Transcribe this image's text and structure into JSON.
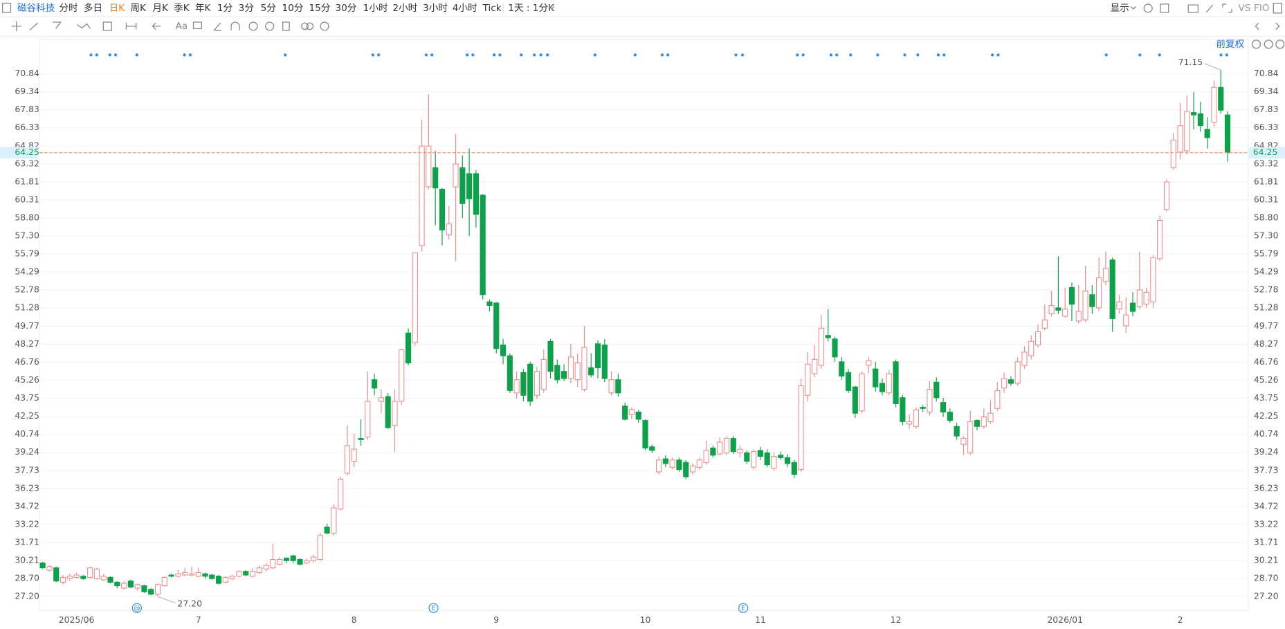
{
  "toolbar": {
    "stock": "磁谷科技",
    "periods": [
      "分时",
      "多日",
      "日K",
      "周K",
      "月K",
      "季K",
      "年K",
      "1分",
      "3分",
      "5分",
      "10分",
      "15分",
      "30分",
      "1小时",
      "2小时",
      "3小时",
      "4小时",
      "Tick",
      "1天 : 1分K"
    ],
    "active_period_index": 2,
    "display": "显示",
    "vs": "VS",
    "fio": "FIO",
    "text_tool": "Aa",
    "adjust": "前复权"
  },
  "chart_data": {
    "type": "candlestick",
    "up_color": "#f08a8a",
    "down_color": "#0ea14b",
    "price_line_color": "#f5a15a",
    "grid": true,
    "ylim": [
      26.04,
      72.89
    ],
    "yticks": [
      {
        "value": 27.2,
        "label": "27.20"
      },
      {
        "value": 28.7,
        "label": "28.70"
      },
      30.21,
      31.71,
      33.22,
      34.72,
      36.23,
      37.73,
      39.24,
      40.74,
      42.25,
      43.75,
      45.26,
      46.76,
      48.27,
      49.77,
      51.28,
      52.78,
      54.29,
      55.79,
      {
        "value": 57.3,
        "label": "57.30"
      },
      {
        "value": 58.8,
        "label": "58.80"
      },
      60.31,
      61.81,
      63.32,
      64.82,
      66.33,
      67.83,
      69.34,
      70.84
    ],
    "last_price": 64.25,
    "annotations": [
      "71.15",
      "27.20"
    ],
    "bottom_markers": [
      "@",
      "E",
      "E"
    ],
    "categories": [
      null,
      null,
      null,
      null,
      null,
      "2025/06",
      null,
      null,
      null,
      null,
      null,
      null,
      null,
      null,
      null,
      null,
      null,
      null,
      null,
      null,
      null,
      null,
      null,
      "7",
      null,
      null,
      null,
      null,
      null,
      null,
      null,
      null,
      null,
      null,
      null,
      null,
      null,
      null,
      null,
      null,
      null,
      null,
      null,
      null,
      null,
      null,
      "8",
      null,
      null,
      null,
      null,
      null,
      null,
      null,
      null,
      null,
      null,
      null,
      null,
      null,
      null,
      null,
      null,
      null,
      null,
      null,
      null,
      "9",
      null,
      null,
      null,
      null,
      null,
      null,
      null,
      null,
      null,
      null,
      null,
      null,
      null,
      null,
      null,
      null,
      null,
      null,
      null,
      null,
      null,
      "10",
      null,
      null,
      null,
      null,
      null,
      null,
      null,
      null,
      null,
      null,
      null,
      null,
      null,
      null,
      null,
      null,
      "11",
      null,
      null,
      null,
      null,
      null,
      null,
      null,
      null,
      null,
      null,
      null,
      null,
      null,
      null,
      null,
      null,
      null,
      null,
      null,
      "12",
      null,
      null,
      null,
      null,
      null,
      null,
      null,
      null,
      null,
      null,
      null,
      null,
      null,
      null,
      null,
      null,
      null,
      null,
      null,
      null,
      null,
      null,
      null,
      null,
      "2026/01",
      null,
      null,
      null,
      null,
      null,
      null,
      null,
      null,
      null,
      null,
      null,
      null,
      null,
      null,
      null,
      null,
      "2",
      null,
      null,
      null,
      null,
      null,
      null,
      null
    ],
    "ohlc": [
      [
        30.0,
        30.1,
        29.5,
        29.6
      ],
      [
        29.4,
        29.8,
        29.3,
        29.7
      ],
      [
        29.6,
        29.7,
        28.4,
        28.5
      ],
      [
        28.4,
        29.0,
        28.2,
        28.8
      ],
      [
        28.7,
        29.1,
        28.5,
        28.9
      ],
      [
        28.8,
        29.2,
        28.7,
        29.0
      ],
      [
        28.9,
        29.0,
        28.6,
        28.7
      ],
      [
        28.8,
        29.7,
        28.7,
        29.6
      ],
      [
        28.7,
        29.6,
        28.6,
        29.5
      ],
      [
        28.6,
        29.1,
        28.5,
        28.9
      ],
      [
        28.8,
        28.9,
        28.3,
        28.4
      ],
      [
        28.4,
        28.5,
        27.9,
        28.1
      ],
      [
        27.9,
        28.5,
        27.8,
        28.3
      ],
      [
        28.5,
        28.6,
        27.9,
        28.0
      ],
      [
        27.9,
        28.3,
        27.7,
        28.2
      ],
      [
        28.1,
        28.2,
        27.5,
        27.6
      ],
      [
        27.8,
        27.9,
        27.3,
        27.4
      ],
      [
        27.4,
        28.3,
        27.2,
        28.2
      ],
      [
        28.1,
        28.9,
        28.0,
        28.8
      ],
      [
        29.0,
        29.1,
        28.8,
        28.9
      ],
      [
        28.9,
        29.4,
        28.8,
        29.1
      ],
      [
        29.0,
        29.6,
        28.9,
        29.2
      ],
      [
        29.0,
        29.7,
        28.9,
        29.1
      ],
      [
        28.9,
        29.6,
        28.8,
        29.2
      ],
      [
        29.1,
        29.2,
        28.7,
        28.9
      ],
      [
        29.0,
        29.1,
        28.6,
        28.7
      ],
      [
        28.9,
        29.0,
        28.2,
        28.3
      ],
      [
        28.4,
        28.9,
        28.3,
        28.8
      ],
      [
        28.7,
        29.0,
        28.6,
        28.9
      ],
      [
        28.9,
        29.4,
        28.8,
        29.3
      ],
      [
        29.3,
        29.4,
        28.9,
        29.0
      ],
      [
        28.9,
        29.6,
        28.8,
        29.3
      ],
      [
        29.2,
        29.8,
        29.1,
        29.6
      ],
      [
        29.5,
        30.0,
        29.3,
        29.8
      ],
      [
        29.6,
        31.6,
        29.5,
        30.3
      ],
      [
        29.9,
        30.5,
        29.8,
        30.3
      ],
      [
        30.4,
        30.5,
        30.0,
        30.2
      ],
      [
        30.6,
        30.7,
        30.0,
        30.2
      ],
      [
        30.3,
        30.4,
        29.8,
        29.9
      ],
      [
        30.0,
        30.4,
        29.9,
        30.2
      ],
      [
        30.2,
        30.7,
        30.0,
        30.5
      ],
      [
        30.3,
        32.5,
        30.2,
        32.3
      ],
      [
        33.0,
        33.3,
        32.4,
        32.5
      ],
      [
        32.5,
        34.9,
        32.3,
        34.6
      ],
      [
        34.5,
        37.2,
        34.4,
        37.0
      ],
      [
        37.5,
        41.5,
        37.3,
        39.8
      ],
      [
        38.5,
        40.8,
        38.0,
        39.5
      ],
      [
        40.4,
        42.0,
        39.8,
        40.3
      ],
      [
        40.5,
        46.0,
        40.3,
        43.5
      ],
      [
        45.3,
        45.8,
        44.0,
        44.6
      ],
      [
        43.5,
        44.5,
        42.5,
        43.8
      ],
      [
        43.9,
        44.2,
        41.2,
        41.3
      ],
      [
        41.5,
        44.5,
        39.3,
        43.5
      ],
      [
        43.5,
        47.9,
        43.2,
        47.8
      ],
      [
        49.2,
        49.6,
        46.5,
        46.7
      ],
      [
        48.4,
        55.9,
        48.1,
        55.9
      ],
      [
        56.5,
        67.0,
        56.0,
        64.8
      ],
      [
        61.4,
        69.1,
        61.2,
        64.8
      ],
      [
        63.0,
        64.4,
        58.2,
        61.3
      ],
      [
        61.2,
        61.3,
        56.5,
        57.8
      ],
      [
        57.4,
        59.8,
        57.0,
        58.3
      ],
      [
        61.4,
        65.8,
        55.2,
        63.3
      ],
      [
        63.0,
        64.0,
        58.8,
        60.0
      ],
      [
        62.5,
        64.6,
        57.3,
        60.4
      ],
      [
        62.5,
        62.8,
        58.0,
        59.1
      ],
      [
        60.7,
        60.8,
        52.0,
        52.4
      ],
      [
        51.8,
        52.0,
        51.0,
        51.5
      ],
      [
        51.7,
        51.8,
        47.5,
        47.9
      ],
      [
        48.2,
        48.7,
        46.6,
        47.3
      ],
      [
        47.3,
        47.5,
        44.2,
        44.4
      ],
      [
        44.2,
        46.0,
        43.7,
        45.3
      ],
      [
        45.9,
        46.2,
        43.5,
        44.0
      ],
      [
        46.6,
        46.8,
        43.1,
        43.5
      ],
      [
        44.0,
        46.4,
        43.7,
        46.0
      ],
      [
        44.5,
        47.8,
        44.2,
        47.0
      ],
      [
        48.5,
        48.7,
        45.4,
        46.0
      ],
      [
        46.5,
        47.0,
        45.0,
        45.3
      ],
      [
        46.0,
        46.6,
        45.2,
        45.4
      ],
      [
        45.4,
        48.3,
        45.0,
        47.2
      ],
      [
        45.3,
        47.5,
        44.7,
        46.7
      ],
      [
        44.5,
        49.8,
        44.3,
        48.0
      ],
      [
        46.3,
        47.5,
        45.5,
        45.7
      ],
      [
        48.3,
        48.6,
        45.4,
        46.3
      ],
      [
        48.2,
        48.7,
        45.1,
        45.4
      ],
      [
        44.2,
        46.0,
        44.0,
        45.3
      ],
      [
        45.3,
        45.8,
        43.9,
        44.2
      ],
      [
        43.1,
        43.4,
        41.9,
        42.0
      ],
      [
        42.4,
        43.0,
        42.0,
        42.8
      ],
      [
        42.6,
        42.8,
        41.7,
        42.0
      ],
      [
        41.9,
        42.0,
        39.4,
        39.6
      ],
      [
        39.7,
        39.9,
        39.2,
        39.4
      ],
      [
        37.6,
        38.9,
        37.4,
        38.6
      ],
      [
        38.7,
        39.0,
        38.0,
        38.3
      ],
      [
        38.0,
        38.8,
        37.8,
        38.6
      ],
      [
        38.6,
        38.8,
        37.6,
        37.8
      ],
      [
        38.4,
        38.6,
        37.0,
        37.2
      ],
      [
        37.6,
        38.3,
        37.4,
        38.1
      ],
      [
        38.0,
        38.8,
        37.8,
        38.6
      ],
      [
        38.4,
        40.2,
        38.2,
        39.4
      ],
      [
        39.6,
        39.8,
        38.8,
        39.0
      ],
      [
        39.1,
        40.5,
        39.0,
        40.1
      ],
      [
        39.2,
        40.6,
        39.0,
        40.4
      ],
      [
        40.4,
        40.6,
        39.1,
        39.3
      ],
      [
        39.2,
        39.8,
        38.8,
        39.5
      ],
      [
        39.2,
        39.4,
        38.3,
        38.5
      ],
      [
        38.0,
        39.5,
        37.8,
        39.3
      ],
      [
        39.4,
        39.7,
        38.6,
        38.9
      ],
      [
        39.2,
        39.5,
        38.0,
        38.2
      ],
      [
        37.9,
        39.2,
        37.7,
        38.9
      ],
      [
        39.0,
        39.3,
        38.6,
        38.8
      ],
      [
        38.8,
        39.1,
        38.0,
        38.3
      ],
      [
        38.4,
        38.6,
        37.1,
        37.4
      ],
      [
        37.8,
        45.4,
        37.6,
        44.8
      ],
      [
        44.0,
        47.6,
        43.5,
        46.6
      ],
      [
        45.8,
        48.2,
        45.5,
        47.0
      ],
      [
        46.5,
        50.7,
        46.2,
        49.6
      ],
      [
        49.0,
        51.2,
        48.5,
        48.8
      ],
      [
        48.7,
        48.9,
        46.8,
        47.2
      ],
      [
        46.8,
        47.2,
        45.3,
        45.6
      ],
      [
        45.9,
        46.2,
        44.2,
        44.4
      ],
      [
        44.7,
        44.8,
        42.1,
        42.5
      ],
      [
        42.7,
        46.0,
        42.5,
        45.8
      ],
      [
        46.5,
        47.2,
        45.8,
        46.9
      ],
      [
        46.2,
        46.8,
        44.3,
        44.7
      ],
      [
        45.0,
        45.4,
        44.0,
        44.3
      ],
      [
        44.2,
        46.1,
        44.0,
        45.8
      ],
      [
        46.8,
        47.0,
        43.0,
        43.3
      ],
      [
        43.8,
        44.0,
        41.5,
        41.8
      ],
      [
        41.6,
        42.4,
        41.2,
        41.8
      ],
      [
        41.4,
        43.0,
        41.2,
        42.8
      ],
      [
        43.0,
        43.2,
        42.6,
        42.9
      ],
      [
        42.6,
        45.2,
        42.3,
        44.5
      ],
      [
        45.1,
        45.5,
        43.5,
        43.8
      ],
      [
        43.4,
        43.8,
        42.2,
        42.6
      ],
      [
        42.6,
        42.9,
        41.7,
        41.9
      ],
      [
        41.4,
        41.7,
        40.3,
        40.6
      ],
      [
        39.9,
        40.6,
        39.0,
        40.4
      ],
      [
        39.2,
        42.7,
        39.0,
        41.8
      ],
      [
        41.9,
        42.0,
        41.1,
        41.4
      ],
      [
        41.4,
        42.9,
        41.2,
        42.2
      ],
      [
        41.8,
        43.6,
        41.6,
        42.5
      ],
      [
        42.9,
        45.1,
        42.7,
        44.4
      ],
      [
        44.6,
        45.9,
        44.2,
        45.4
      ],
      [
        45.3,
        45.6,
        44.8,
        45.0
      ],
      [
        45.0,
        47.2,
        44.8,
        46.8
      ],
      [
        46.5,
        48.1,
        46.2,
        47.6
      ],
      [
        47.3,
        49.0,
        47.0,
        48.5
      ],
      [
        48.2,
        49.9,
        48.0,
        49.3
      ],
      [
        49.6,
        51.6,
        49.4,
        50.3
      ],
      [
        50.8,
        52.7,
        50.6,
        51.5
      ],
      [
        51.3,
        55.6,
        50.8,
        51.1
      ],
      [
        50.6,
        53.0,
        50.5,
        51.2
      ],
      [
        53.0,
        53.4,
        50.2,
        51.6
      ],
      [
        50.2,
        53.2,
        50.0,
        51.0
      ],
      [
        50.3,
        54.8,
        50.1,
        52.7
      ],
      [
        52.4,
        53.2,
        50.8,
        51.4
      ],
      [
        51.3,
        55.5,
        51.0,
        53.8
      ],
      [
        53.5,
        56.0,
        53.2,
        54.6
      ],
      [
        55.3,
        55.5,
        49.3,
        50.4
      ],
      [
        51.2,
        52.4,
        50.8,
        51.8
      ],
      [
        49.8,
        52.2,
        49.2,
        50.7
      ],
      [
        51.7,
        52.6,
        50.6,
        51.0
      ],
      [
        51.4,
        56.0,
        51.2,
        52.8
      ],
      [
        51.6,
        53.0,
        51.3,
        52.6
      ],
      [
        51.8,
        55.7,
        51.3,
        55.5
      ],
      [
        55.4,
        59.0,
        55.2,
        58.6
      ],
      [
        59.5,
        62.0,
        59.3,
        61.8
      ],
      [
        63.0,
        65.9,
        62.8,
        65.3
      ],
      [
        64.3,
        68.4,
        63.7,
        66.5
      ],
      [
        64.4,
        69.0,
        64.1,
        67.7
      ],
      [
        67.6,
        69.3,
        66.2,
        67.4
      ],
      [
        67.5,
        68.5,
        66.0,
        66.5
      ],
      [
        66.2,
        67.2,
        64.6,
        65.5
      ],
      [
        66.8,
        70.3,
        66.4,
        69.7
      ],
      [
        69.7,
        71.15,
        67.5,
        67.8
      ],
      [
        67.4,
        67.7,
        63.5,
        64.25
      ]
    ]
  }
}
